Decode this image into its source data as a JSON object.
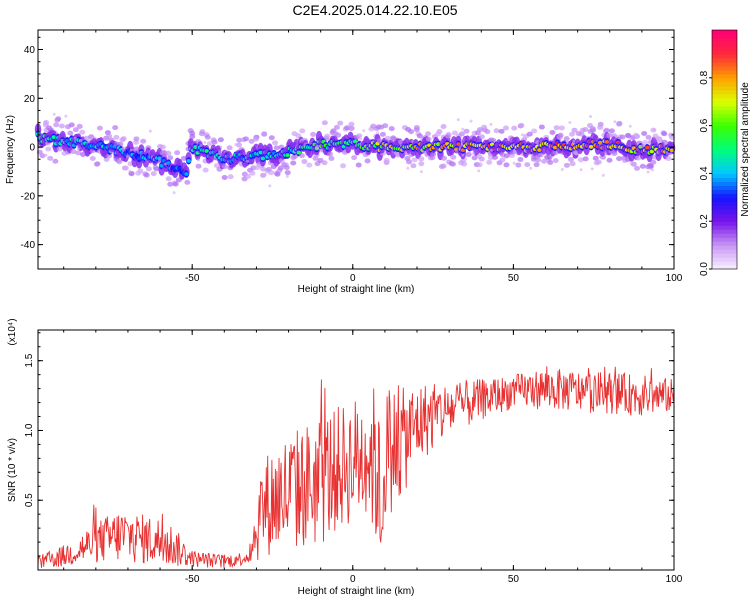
{
  "title": "C2E4.2025.014.22.10.E05",
  "colors": {
    "snr_line": "#e83030",
    "axis": "#000000",
    "core_band": "#2050ff",
    "halo_band": "#9b62f2",
    "faint_halo": "#e3cef9"
  },
  "chart_data": [
    {
      "type": "heatmap",
      "title": "",
      "xlabel": "Height of straight line (km)",
      "ylabel": "Frequency (Hz)",
      "xlim": [
        -98,
        100
      ],
      "ylim": [
        -50,
        48
      ],
      "xticks": [
        -50,
        0,
        50,
        100
      ],
      "xtick_labels": [
        "-50",
        "0",
        "50",
        "100"
      ],
      "yticks": [
        -40,
        -20,
        0,
        20,
        40
      ],
      "ytick_labels": [
        "-40",
        "-20",
        "0",
        "20",
        "40"
      ],
      "grid": false,
      "colorbar": {
        "label": "Normalized spectral amplitude",
        "range": [
          0.0,
          1.0
        ],
        "ticks": [
          0.0,
          0.2,
          0.4,
          0.6,
          0.8
        ],
        "tick_labels": [
          "0.0",
          "0.2",
          "0.4",
          "0.6",
          "0.8"
        ],
        "colormap": "rainbow (purple-blue-cyan-green-yellow-red)"
      },
      "ridge": {
        "x": [
          -98,
          -90,
          -80,
          -70,
          -60,
          -52,
          -50,
          -45,
          -40,
          -30,
          -20,
          -10,
          0,
          10,
          20,
          30,
          40,
          50,
          60,
          70,
          80,
          90,
          95,
          100
        ],
        "y": [
          4,
          2,
          1,
          -2,
          -6,
          -11,
          0,
          -3,
          -5,
          -4,
          -2,
          1,
          1,
          0,
          0,
          0,
          0,
          0,
          0,
          1,
          1,
          -1,
          -1,
          0
        ],
        "amplitude": [
          0.55,
          0.45,
          0.45,
          0.4,
          0.4,
          0.35,
          0.5,
          0.5,
          0.45,
          0.45,
          0.5,
          0.6,
          0.6,
          0.75,
          0.8,
          0.85,
          0.9,
          0.9,
          0.9,
          0.85,
          0.9,
          0.85,
          0.85,
          0.8
        ]
      }
    },
    {
      "type": "line",
      "title": "",
      "xlabel": "Height of straight line (km)",
      "ylabel": "SNR (10 * v/v)",
      "yscale_label": "(x10⁴)",
      "xlim": [
        -98,
        100
      ],
      "ylim": [
        0.0,
        1.72
      ],
      "xticks": [
        -50,
        0,
        50,
        100
      ],
      "xtick_labels": [
        "-50",
        "0",
        "50",
        "100"
      ],
      "yticks": [
        0.5,
        1.0,
        1.5
      ],
      "ytick_labels": [
        "0.5",
        "1.0",
        "1.5"
      ],
      "grid": false,
      "series": [
        {
          "envelope": {
            "x": [
              -98,
              -90,
              -80,
              -72,
              -65,
              -58,
              -50,
              -40,
              -35,
              -32,
              -30,
              -28,
              -25,
              -20,
              -15,
              -10,
              -5,
              0,
              5,
              8,
              9,
              10,
              15,
              20,
              30,
              40,
              50,
              60,
              70,
              80,
              90,
              100
            ],
            "mean": [
              0.05,
              0.1,
              0.2,
              0.25,
              0.22,
              0.2,
              0.08,
              0.06,
              0.08,
              0.1,
              0.3,
              0.45,
              0.5,
              0.55,
              0.6,
              0.65,
              0.72,
              0.78,
              0.85,
              0.7,
              0.25,
              0.85,
              0.9,
              1.05,
              1.15,
              1.22,
              1.28,
              1.3,
              1.28,
              1.27,
              1.25,
              1.25
            ],
            "amplitude": [
              0.05,
              0.08,
              0.15,
              0.2,
              0.18,
              0.18,
              0.06,
              0.05,
              0.05,
              0.05,
              0.25,
              0.35,
              0.4,
              0.45,
              0.45,
              0.5,
              0.45,
              0.45,
              0.5,
              0.6,
              0.15,
              0.5,
              0.4,
              0.3,
              0.2,
              0.15,
              0.12,
              0.15,
              0.15,
              0.15,
              0.15,
              0.12
            ]
          }
        }
      ]
    }
  ]
}
